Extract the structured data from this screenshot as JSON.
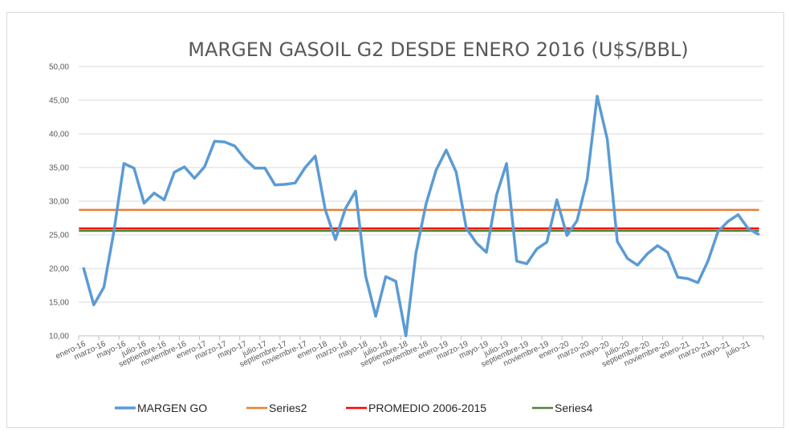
{
  "chart_data": {
    "type": "line",
    "title": "MARGEN GASOIL G2 DESDE ENERO 2016 (U$S/BBL)",
    "xlabel": "",
    "ylabel": "",
    "ylim": [
      10,
      50
    ],
    "ytick_step": 5,
    "yticks": [
      "10,00",
      "15,00",
      "20,00",
      "25,00",
      "30,00",
      "35,00",
      "40,00",
      "45,00",
      "50,00"
    ],
    "grid": true,
    "legend_position": "bottom",
    "categories": [
      "enero-16",
      "febrero-16",
      "marzo-16",
      "abril-16",
      "mayo-16",
      "junio-16",
      "julio-16",
      "agosto-16",
      "septiembre-16",
      "octubre-16",
      "noviembre-16",
      "diciembre-16",
      "enero-17",
      "febrero-17",
      "marzo-17",
      "abril-17",
      "mayo-17",
      "junio-17",
      "julio-17",
      "agosto-17",
      "septiembre-17",
      "octubre-17",
      "noviembre-17",
      "diciembre-17",
      "enero-18",
      "febrero-18",
      "marzo-18",
      "abril-18",
      "mayo-18",
      "junio-18",
      "julio-18",
      "agosto-18",
      "septiembre-18",
      "octubre-18",
      "noviembre-18",
      "diciembre-18",
      "enero-19",
      "febrero-19",
      "marzo-19",
      "abril-19",
      "mayo-19",
      "junio-19",
      "julio-19",
      "agosto-19",
      "septiembre-19",
      "octubre-19",
      "noviembre-19",
      "diciembre-19",
      "enero-20",
      "febrero-20",
      "marzo-20",
      "abril-20",
      "mayo-20",
      "junio-20",
      "julio-20",
      "agosto-20",
      "septiembre-20",
      "octubre-20",
      "noviembre-20",
      "diciembre-20",
      "enero-21",
      "febrero-21",
      "marzo-21",
      "abril-21",
      "mayo-21",
      "junio-21",
      "julio-21",
      "agosto-21"
    ],
    "xtick_labels_shown": [
      "enero-16",
      "marzo-16",
      "mayo-16",
      "julio-16",
      "septiembre-16",
      "noviembre-16",
      "enero-17",
      "marzo-17",
      "mayo-17",
      "julio-17",
      "septiembre-17",
      "noviembre-17",
      "enero-18",
      "marzo-18",
      "mayo-18",
      "julio-18",
      "septiembre-18",
      "noviembre-18",
      "enero-19",
      "marzo-19",
      "mayo-19",
      "julio-19",
      "septiembre-19",
      "noviembre-19",
      "enero-20",
      "marzo-20",
      "mayo-20",
      "julio-20",
      "septiembre-20",
      "noviembre-20",
      "enero-21",
      "marzo-21",
      "mayo-21",
      "julio-21"
    ],
    "series": [
      {
        "name": "MARGEN GO",
        "color": "#5b9bd5",
        "values": [
          20.0,
          14.6,
          17.2,
          25.5,
          35.6,
          34.9,
          29.7,
          31.2,
          30.2,
          34.3,
          35.1,
          33.4,
          35.1,
          38.9,
          38.8,
          38.2,
          36.3,
          34.9,
          34.9,
          32.4,
          32.5,
          32.7,
          35.0,
          36.7,
          28.7,
          24.3,
          28.9,
          31.5,
          18.9,
          12.9,
          18.8,
          18.1,
          10.0,
          22.3,
          29.6,
          34.6,
          37.6,
          34.3,
          26.0,
          23.8,
          22.4,
          30.9,
          35.6,
          21.1,
          20.7,
          22.9,
          23.9,
          30.2,
          24.9,
          27.1,
          33.2,
          45.6,
          39.2,
          24.0,
          21.5,
          20.5,
          22.2,
          23.4,
          22.4,
          18.7,
          18.5,
          17.9,
          21.1,
          25.5,
          27.0,
          28.0,
          25.9,
          25.1
        ]
      },
      {
        "name": "Series2",
        "color": "#ed7d31",
        "constant": 28.7
      },
      {
        "name": "PROMEDIO 2006-2015",
        "color": "#ff0000",
        "constant": 25.95
      },
      {
        "name": "Series4",
        "color": "#548235",
        "constant": 25.6
      }
    ]
  },
  "colors": {
    "gridline": "#d9d9d9",
    "axis": "#bfbfbf",
    "text": "#595959",
    "frame": "#d9d9d9"
  }
}
